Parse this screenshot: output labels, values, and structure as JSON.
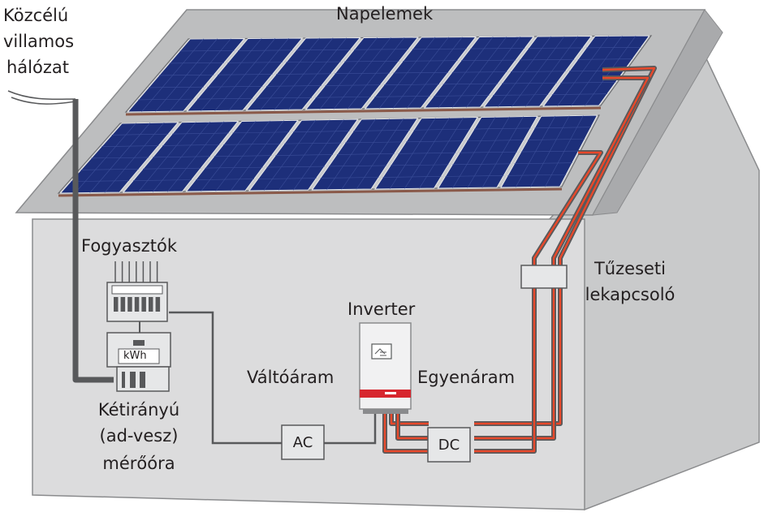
{
  "labels": {
    "grid": [
      "Közcélú",
      "villamos",
      "hálózat"
    ],
    "panels": "Napelemek",
    "consumers": "Fogyasztók",
    "meter": [
      "Kétirányú",
      "(ad-vesz)",
      "mérőóra"
    ],
    "meter_unit": "kWh",
    "inverter": "Inverter",
    "ac_current": "Váltóáram",
    "dc_current": "Egyenáram",
    "fire_switch": [
      "Tűzeseti",
      "lekapcsoló"
    ],
    "ac_box": "AC",
    "dc_box": "DC"
  },
  "colors": {
    "wall": "#dcdcdd",
    "wall_right": "#c9cacb",
    "roof": "#bdbebf",
    "outline": "#8a8b8d",
    "panel_cell": "#1d2f7a",
    "panel_frame": "#c8c9cb",
    "cable_dark": "#58595b",
    "cable_red": "#e8482a",
    "inverter_stripe": "#d7262e"
  }
}
